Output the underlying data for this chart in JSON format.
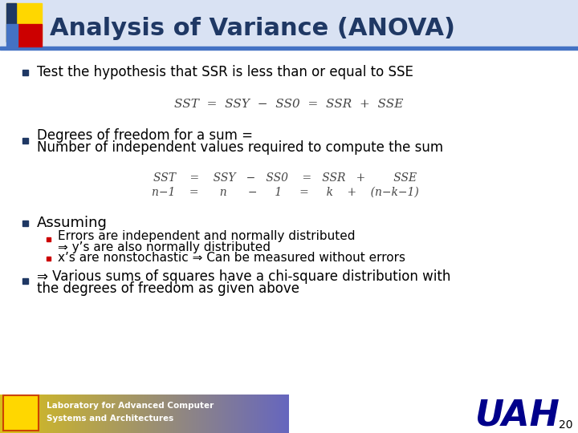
{
  "title": "Analysis of Variance (ANOVA)",
  "title_color": "#1F3864",
  "title_fontsize": 22,
  "bg_color": "#FFFFFF",
  "bullet1": "Test the hypothesis that SSR is less than or equal to SSE",
  "eq1": "$SST = SSY - SS0 = SSR + SSE$",
  "bullet2a": "Degrees of freedom for a sum =",
  "bullet2b": "Number of independent values required to compute the sum",
  "eq2a": "$SST\\;\\;=\\;\\;SSY\\;\\;-\\;\\;SS0\\;\\;=\\;\\;SSR\\;\\;+\\;\\;\\;\\;\\;\\;SSE$",
  "eq2b": "$n-1\\;\\;=\\;\\;\\;\\;n\\;\\;\\;\\;-\\;\\;\\;\\;1\\;\\;\\;\\;=\\;\\;\\;\\;k\\;\\;\\;+\\;\\;(n-k-1)$",
  "bullet3": "Assuming",
  "sub1a": "Errors are independent and normally distributed",
  "sub1b": "⇒ y’s are also normally distributed",
  "sub2": "x’s are nonstochastic ⇒ Can be measured without errors",
  "bullet4a": "⇒ Various sums of squares have a chi-square distribution with",
  "bullet4b": "the degrees of freedom as given above",
  "footer_text1": "Laboratory for Advanced Computer",
  "footer_text2": "Systems and Architectures",
  "uah_color": "#00008B",
  "page_num": "20",
  "text_color": "#000000",
  "font_size_body": 12,
  "eq_color": "#444444",
  "header_yellow": "#FFD700",
  "header_red": "#CC0000",
  "header_darkblue": "#1F3864",
  "header_blue": "#4472C4",
  "header_bg": "#D9E2F3",
  "bullet_dark": "#1F3864",
  "bullet_red": "#CC0000"
}
